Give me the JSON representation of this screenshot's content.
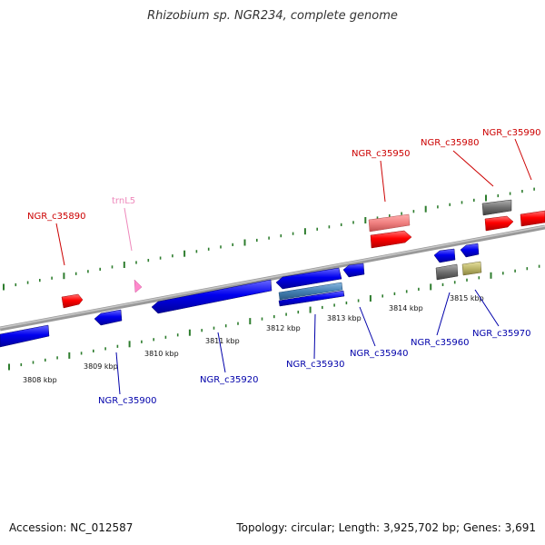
{
  "title": "Rhizobium sp. NGR234, complete genome",
  "accession": "Accession: NC_012587",
  "summary": "Topology: circular; Length: 3,925,702 bp; Genes: 3,691",
  "colors": {
    "backbone": "#8c8c8c",
    "dots": "#2e7d2e",
    "forward_label": "#cc0000",
    "reverse_label": "#0000aa",
    "trna_label": "#ee88bb",
    "gene_red": "#ff0000",
    "gene_pink": "#f08080",
    "gene_blue": "#0000ee",
    "gene_steel": "#4682b4",
    "gene_gray": "#707070",
    "gene_khaki": "#bdb76b",
    "trna": "#ff88cc"
  },
  "scale_ticks": [
    "3808 kbp",
    "3809 kbp",
    "3810 kbp",
    "3811 kbp",
    "3812 kbp",
    "3813 kbp",
    "3814 kbp",
    "3815 kbp"
  ],
  "labels": {
    "NGR_c35890": "NGR_c35890",
    "trnL5": "trnL5",
    "NGR_c35950": "NGR_c35950",
    "NGR_c35980": "NGR_c35980",
    "NGR_c35990": "NGR_c35990",
    "NGR_c35900": "NGR_c35900",
    "NGR_c35920": "NGR_c35920",
    "NGR_c35930": "NGR_c35930",
    "NGR_c35940": "NGR_c35940",
    "NGR_c35960": "NGR_c35960",
    "NGR_c35970": "NGR_c35970"
  }
}
